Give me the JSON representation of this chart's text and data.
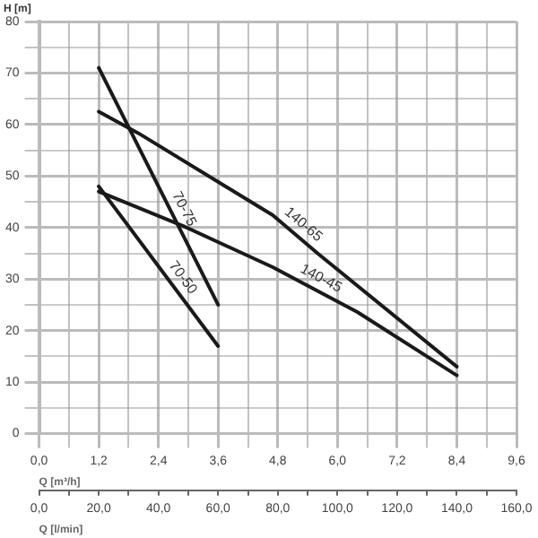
{
  "chart_data": {
    "type": "line",
    "ylabel": "H [m]",
    "xlabel": "Q [m³/h]",
    "x2label": "Q [l/min]",
    "xlim": [
      0,
      9.6
    ],
    "xticks": [
      {
        "value": 0,
        "label": "0,0"
      },
      {
        "value": 0.6,
        "label": null
      },
      {
        "value": 1.2,
        "label": "1,2"
      },
      {
        "value": 1.8,
        "label": null
      },
      {
        "value": 2.4,
        "label": "2,4"
      },
      {
        "value": 3,
        "label": null
      },
      {
        "value": 3.6,
        "label": "3,6"
      },
      {
        "value": 4.2,
        "label": null
      },
      {
        "value": 4.8,
        "label": "4,8"
      },
      {
        "value": 5.4,
        "label": null
      },
      {
        "value": 6,
        "label": "6,0"
      },
      {
        "value": 6.6,
        "label": null
      },
      {
        "value": 7.2,
        "label": "7,2"
      },
      {
        "value": 7.8,
        "label": null
      },
      {
        "value": 8.4,
        "label": "8,4"
      },
      {
        "value": 9,
        "label": null
      },
      {
        "value": 9.6,
        "label": "9,6"
      }
    ],
    "x2lim": [
      0,
      160
    ],
    "x2ticks": [
      {
        "value": 0,
        "label": "0,0"
      },
      {
        "value": 10,
        "label": null
      },
      {
        "value": 20,
        "label": "20,0"
      },
      {
        "value": 30,
        "label": null
      },
      {
        "value": 40,
        "label": "40,0"
      },
      {
        "value": 50,
        "label": null
      },
      {
        "value": 60,
        "label": "60,0"
      },
      {
        "value": 70,
        "label": null
      },
      {
        "value": 80,
        "label": "80,0"
      },
      {
        "value": 90,
        "label": null
      },
      {
        "value": 100,
        "label": "100,0"
      },
      {
        "value": 110,
        "label": null
      },
      {
        "value": 120,
        "label": "120,0"
      },
      {
        "value": 130,
        "label": null
      },
      {
        "value": 140,
        "label": "140,0"
      },
      {
        "value": 150,
        "label": null
      },
      {
        "value": 160,
        "label": "160,0"
      }
    ],
    "ylim": [
      0,
      80
    ],
    "yticks": [
      0,
      {
        "value": 5,
        "label": null
      },
      10,
      {
        "value": 15,
        "label": null
      },
      20,
      {
        "value": 25,
        "label": null
      },
      30,
      {
        "value": 35,
        "label": null
      },
      40,
      {
        "value": 45,
        "label": null
      },
      50,
      {
        "value": 55,
        "label": null
      },
      60,
      {
        "value": 65,
        "label": null
      },
      70,
      {
        "value": 75,
        "label": null
      },
      80
    ],
    "grid": true,
    "legend": false,
    "marker": "none",
    "line_style": "solid",
    "series": [
      {
        "name": "70-75",
        "color": "#1a1a1a",
        "x": [
          1.2,
          3.6
        ],
        "values": [
          71,
          25
        ]
      },
      {
        "name": "70-50",
        "color": "#1a1a1a",
        "x": [
          1.2,
          3.6
        ],
        "values": [
          48,
          17
        ]
      },
      {
        "name": "140-65",
        "color": "#1a1a1a",
        "x": [
          1.2,
          2,
          4.7,
          5.6,
          8.4
        ],
        "values": [
          62.5,
          58.3,
          42.4,
          35,
          13
        ]
      },
      {
        "name": "140-45",
        "color": "#1a1a1a",
        "x": [
          1.2,
          2.9,
          4.7,
          6.4,
          8.4
        ],
        "values": [
          47,
          40.3,
          32.3,
          23.6,
          11.3
        ]
      }
    ]
  }
}
